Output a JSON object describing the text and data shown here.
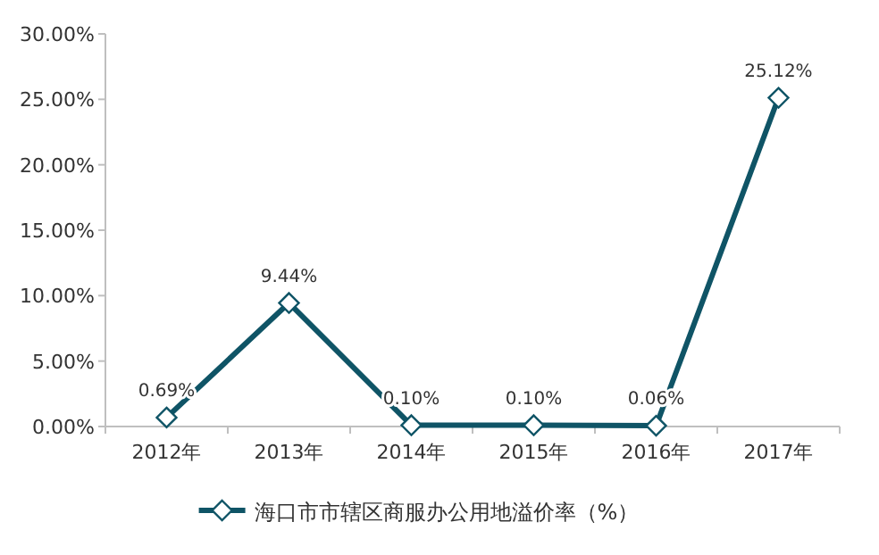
{
  "chart_data": {
    "type": "line",
    "categories": [
      "2012年",
      "2013年",
      "2014年",
      "2015年",
      "2016年",
      "2017年"
    ],
    "series": [
      {
        "name": "海口市市辖区商服办公用地溢价率（%）",
        "color": "#0f5466",
        "values": [
          0.69,
          9.44,
          0.1,
          0.1,
          0.06,
          25.12
        ],
        "value_labels": [
          "0.69%",
          "9.44%",
          "0.10%",
          "0.10%",
          "0.06%",
          "25.12%"
        ]
      }
    ],
    "ylim": [
      0,
      30
    ],
    "yticks": [
      {
        "value": 0,
        "label": "0.00%"
      },
      {
        "value": 5,
        "label": "5.00%"
      },
      {
        "value": 10,
        "label": "10.00%"
      },
      {
        "value": 15,
        "label": "15.00%"
      },
      {
        "value": 20,
        "label": "20.00%"
      },
      {
        "value": 25,
        "label": "25.00%"
      },
      {
        "value": 30,
        "label": "30.00%"
      }
    ],
    "marker": "diamond",
    "legend": "bottom",
    "grid": false
  }
}
